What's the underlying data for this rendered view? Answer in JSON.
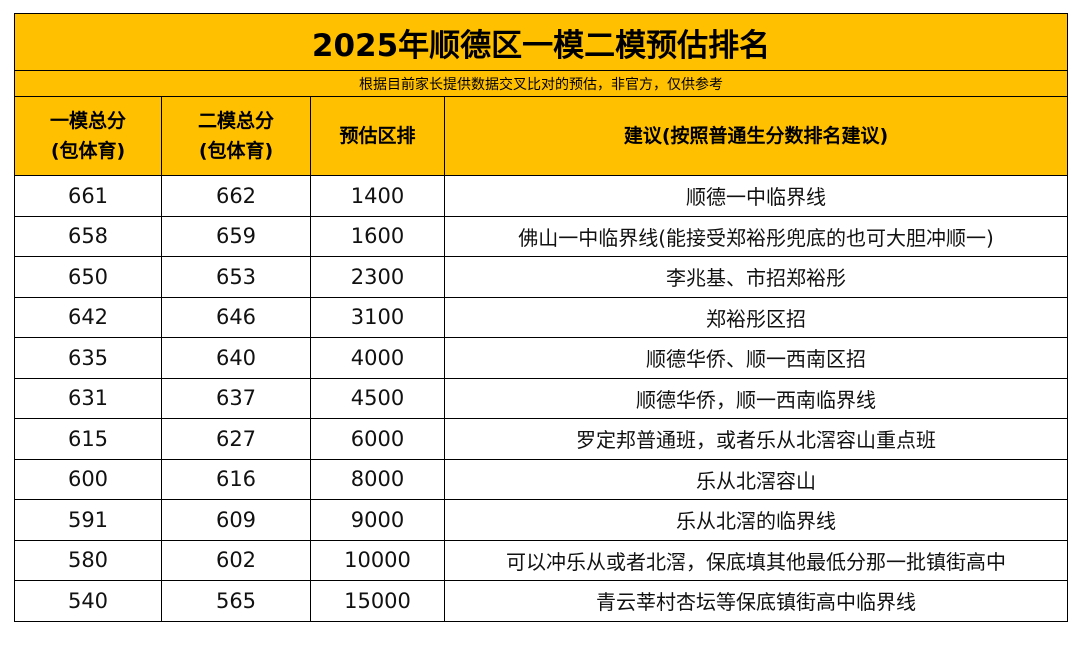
{
  "title": "2025年顺德区一模二模预估排名",
  "note": "根据目前家长提供数据交叉比对的预估，非官方，仅供参考",
  "headers": [
    {
      "line1": "一模总分",
      "line2": "(包体育)"
    },
    {
      "line1": "二模总分",
      "line2": "(包体育)"
    },
    {
      "line1": "预估区排",
      "line2": ""
    },
    {
      "line1": "建议(按照普通生分数排名建议)",
      "line2": ""
    }
  ],
  "rows": [
    {
      "mock1": "661",
      "mock2": "662",
      "rank": "1400",
      "advice": "顺德一中临界线"
    },
    {
      "mock1": "658",
      "mock2": "659",
      "rank": "1600",
      "advice": "佛山一中临界线(能接受郑裕彤兜底的也可大胆冲顺一)"
    },
    {
      "mock1": "650",
      "mock2": "653",
      "rank": "2300",
      "advice": "李兆基、市招郑裕彤"
    },
    {
      "mock1": "642",
      "mock2": "646",
      "rank": "3100",
      "advice": "郑裕彤区招"
    },
    {
      "mock1": "635",
      "mock2": "640",
      "rank": "4000",
      "advice": "顺德华侨、顺一西南区招"
    },
    {
      "mock1": "631",
      "mock2": "637",
      "rank": "4500",
      "advice": "顺德华侨，顺一西南临界线"
    },
    {
      "mock1": "615",
      "mock2": "627",
      "rank": "6000",
      "advice": "罗定邦普通班，或者乐从北滘容山重点班"
    },
    {
      "mock1": "600",
      "mock2": "616",
      "rank": "8000",
      "advice": "乐从北滘容山"
    },
    {
      "mock1": "591",
      "mock2": "609",
      "rank": "9000",
      "advice": "乐从北滘的临界线"
    },
    {
      "mock1": "580",
      "mock2": "602",
      "rank": "10000",
      "advice": "可以冲乐从或者北滘，保底填其他最低分那一批镇街高中"
    },
    {
      "mock1": "540",
      "mock2": "565",
      "rank": "15000",
      "advice": "青云莘村杏坛等保底镇街高中临界线"
    }
  ],
  "colors": {
    "header_fill": "#FFC000",
    "border": "#000000",
    "text": "#111111"
  }
}
